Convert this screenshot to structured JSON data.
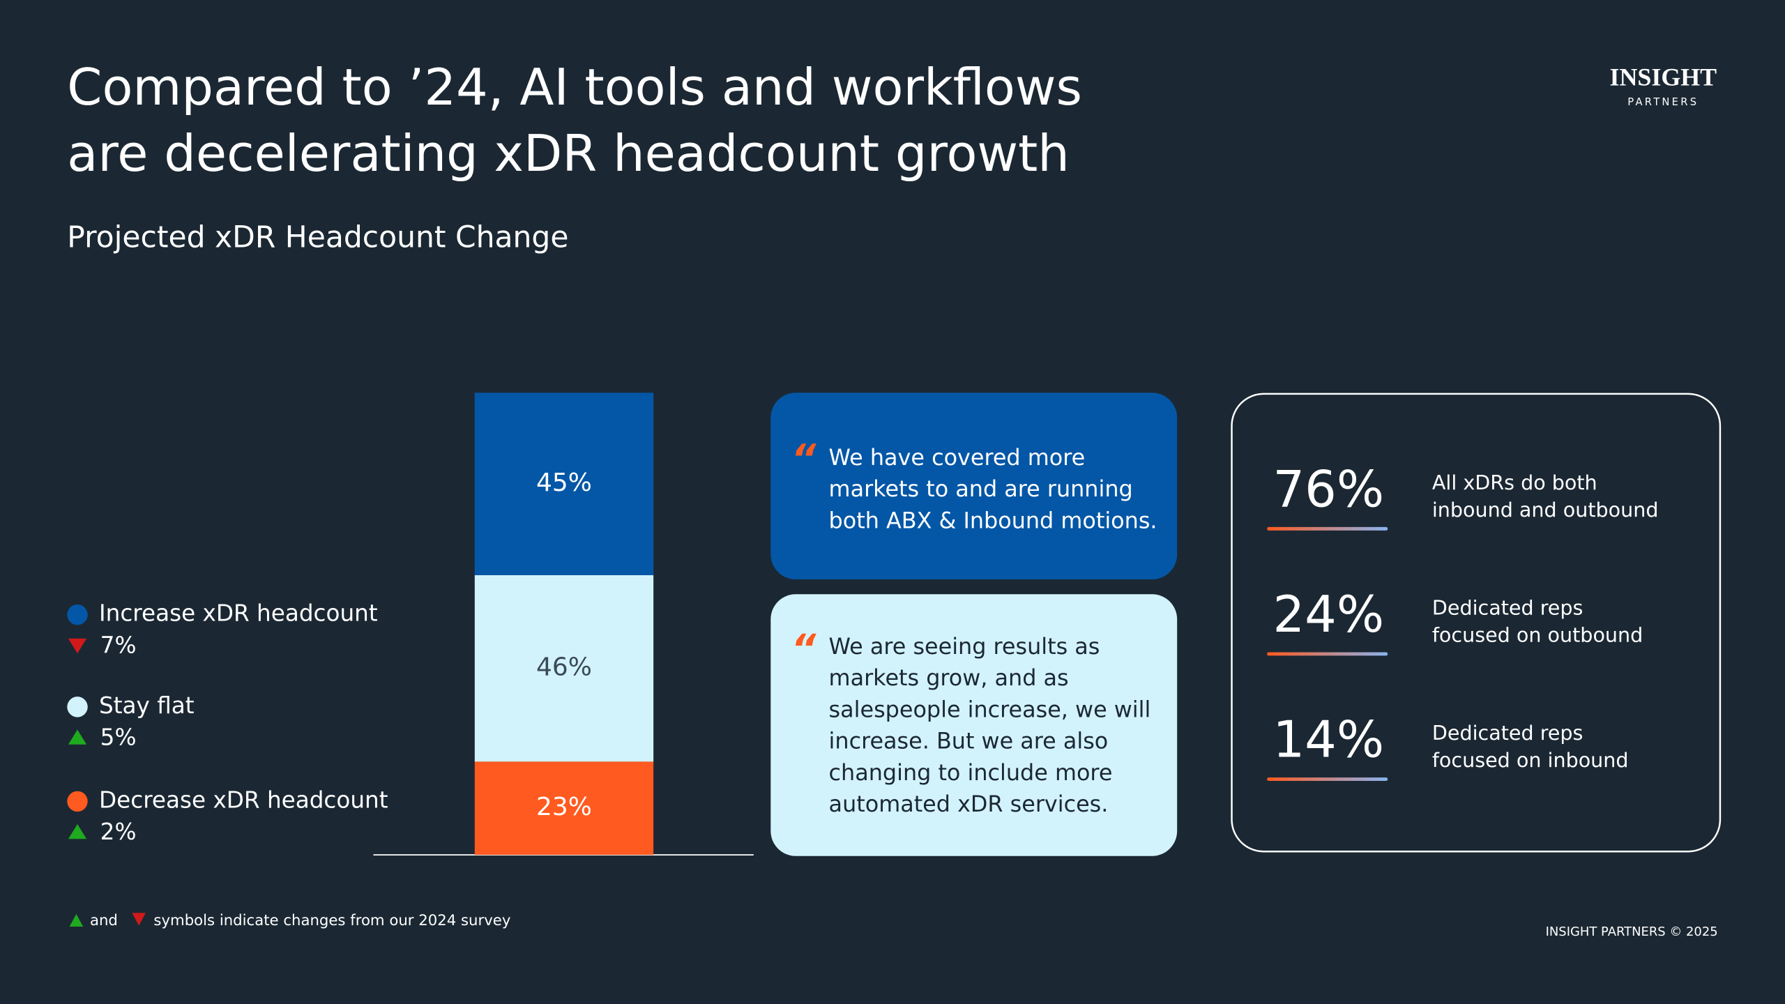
{
  "chart_data": {
    "type": "stacked-bar",
    "title": [
      "Compared to ’24, AI tools and workflows",
      "are decelerating xDR headcount growth"
    ],
    "subtitle": "Projected xDR Headcount Change",
    "series": [
      {
        "name": "Increase xDR headcount",
        "color": "#0457a6",
        "label_color": "#ffffff",
        "values": [
          45
        ],
        "value_labels": [
          "45%"
        ],
        "change": 7,
        "change_label": "7%",
        "change_direction": "down"
      },
      {
        "name": "Stay flat",
        "color": "#d3f3fc",
        "label_color": "#3b4a55",
        "values": [
          46
        ],
        "value_labels": [
          "46%"
        ],
        "change": 5,
        "change_label": "5%",
        "change_direction": "up"
      },
      {
        "name": "Decrease xDR headcount",
        "color": "#ff5a1f",
        "label_color": "#ffffff",
        "values": [
          23
        ],
        "value_labels": [
          "23%"
        ],
        "change": 2,
        "change_label": "2%",
        "change_direction": "up"
      }
    ]
  },
  "quotes": [
    {
      "lines": [
        "We have covered more",
        "markets  to and are running",
        "both ABX & Inbound motions."
      ]
    },
    {
      "lines": [
        "We are seeing results as",
        "markets grow, and as",
        "salespeople increase, we will",
        "increase. But we are also",
        "changing to include more",
        "automated xDR services."
      ]
    }
  ],
  "stats": [
    {
      "value": 76,
      "label": "76%",
      "description": [
        "All xDRs do both",
        "inbound and outbound"
      ]
    },
    {
      "value": 24,
      "label": "24%",
      "description": [
        "Dedicated reps",
        "focused on outbound"
      ]
    },
    {
      "value": 14,
      "label": "14%",
      "description": [
        "Dedicated reps",
        "focused on inbound"
      ]
    }
  ],
  "footnote": {
    "connector": "and",
    "text": "symbols indicate changes from our 2024 survey"
  },
  "logo": {
    "name": "INSIGHT",
    "tagline": "PARTNERS"
  },
  "copyright": "INSIGHT PARTNERS © 2025"
}
